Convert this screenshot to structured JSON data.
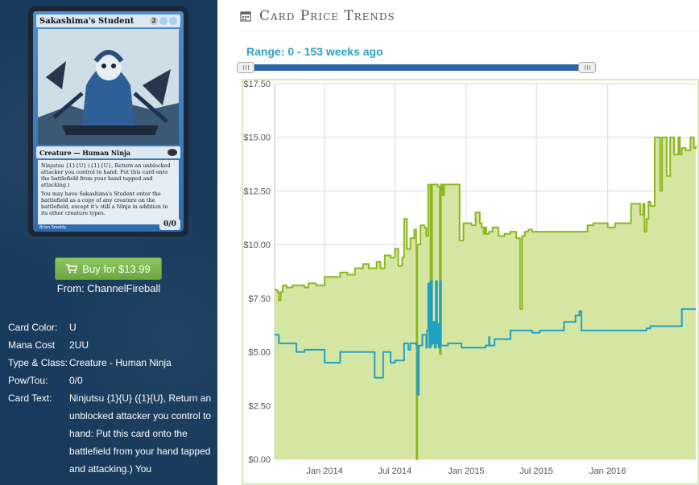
{
  "card": {
    "name": "Sakashima's Student",
    "mana_symbols": [
      "2",
      "U",
      "U"
    ],
    "type_line": "Creature — Human Ninja",
    "rules_text_1": "Ninjutsu {1}{U} ({1}{U}, Return an unblocked attacker you control to hand: Put this card onto the battlefield from your hand tapped and attacking.)",
    "rules_text_2": "You may have Sakashima's Student enter the battlefield as a copy of any creature on the battlefield, except it's still a Ninja in addition to its other creature types.",
    "artist": "Brian Snoddy",
    "pt": "0/0"
  },
  "buy": {
    "label": "Buy for $13.99",
    "from": "From: ChannelFireball"
  },
  "details": [
    {
      "label": "Card Color:",
      "value": "U"
    },
    {
      "label": "Mana Cost",
      "value": "2UU"
    },
    {
      "label": "Type & Class:",
      "value": "Creature - Human Ninja"
    },
    {
      "label": "Pow/Tou:",
      "value": "0/0"
    },
    {
      "label": "Card Text:",
      "value": "Ninjutsu {1}{U} ({1}{U}, Return an unblocked attacker you control to hand: Put this card onto the battlefield from your hand tapped and attacking.) You"
    }
  ],
  "chart_header": {
    "title": "Card Price Trends",
    "icon": "calendar-icon"
  },
  "range": {
    "label": "Range: 0 - 153 weeks ago"
  },
  "colors": {
    "green_line": "#8ab81e",
    "green_fill": "#d4e6a2",
    "blue_line": "#22a0c4",
    "slider": "#2a66a6",
    "sidebar": "#173a5c"
  },
  "chart_data": {
    "type": "line",
    "title": "",
    "xlabel": "",
    "ylabel": "",
    "ylim": [
      0,
      17.5
    ],
    "xlim": [
      "2013-08-25",
      "2016-08-15"
    ],
    "yticks": [
      "$0.00",
      "$2.50",
      "$5.00",
      "$7.50",
      "$10.00",
      "$12.50",
      "$15.00",
      "$17.50"
    ],
    "xticks": [
      {
        "label": "Jan 2014",
        "date": "2014-01-01"
      },
      {
        "label": "Jul 2014",
        "date": "2014-07-01"
      },
      {
        "label": "Jan 2015",
        "date": "2015-01-01"
      },
      {
        "label": "Jul 2015",
        "date": "2015-07-01"
      },
      {
        "label": "Jan 2016",
        "date": "2016-01-01"
      }
    ],
    "grid": true,
    "series": [
      {
        "fill": true,
        "x": [
          "2013-08-25",
          "2013-09-01",
          "2013-09-05",
          "2013-09-10",
          "2013-09-15",
          "2013-09-25",
          "2013-10-10",
          "2013-10-25",
          "2013-11-10",
          "2013-11-20",
          "2013-12-10",
          "2014-01-01",
          "2014-01-20",
          "2014-02-10",
          "2014-03-01",
          "2014-03-20",
          "2014-04-10",
          "2014-04-25",
          "2014-05-15",
          "2014-05-25",
          "2014-06-05",
          "2014-06-20",
          "2014-07-01",
          "2014-07-10",
          "2014-07-20",
          "2014-07-25",
          "2014-08-01",
          "2014-08-10",
          "2014-08-20",
          "2014-08-25",
          "2014-08-26",
          "2014-08-28",
          "2014-09-05",
          "2014-09-15",
          "2014-09-20",
          "2014-09-25",
          "2014-10-01",
          "2014-10-05",
          "2014-10-15",
          "2014-10-20",
          "2014-10-25",
          "2014-10-28",
          "2014-11-01",
          "2014-11-05",
          "2014-11-15",
          "2014-11-25",
          "2014-12-05",
          "2014-12-15",
          "2014-12-25",
          "2015-01-05",
          "2015-01-15",
          "2015-01-25",
          "2015-02-05",
          "2015-02-10",
          "2015-02-15",
          "2015-02-18",
          "2015-02-22",
          "2015-03-01",
          "2015-03-10",
          "2015-03-25",
          "2015-04-10",
          "2015-04-25",
          "2015-05-10",
          "2015-05-20",
          "2015-05-25",
          "2015-06-01",
          "2015-06-10",
          "2015-06-20",
          "2015-07-05",
          "2015-07-20",
          "2015-08-10",
          "2015-09-01",
          "2015-09-20",
          "2015-10-10",
          "2015-10-25",
          "2015-11-10",
          "2015-11-25",
          "2015-12-10",
          "2016-01-01",
          "2016-01-20",
          "2016-02-10",
          "2016-03-01",
          "2016-03-10",
          "2016-03-15",
          "2016-03-20",
          "2016-03-25",
          "2016-04-01",
          "2016-04-05",
          "2016-04-10",
          "2016-04-15",
          "2016-04-20",
          "2016-05-01",
          "2016-05-15",
          "2016-05-20",
          "2016-06-01",
          "2016-06-10",
          "2016-06-20",
          "2016-07-01",
          "2016-07-05",
          "2016-07-10",
          "2016-07-20",
          "2016-08-01",
          "2016-08-10",
          "2016-08-15"
        ],
        "y": [
          7.9,
          7.8,
          7.4,
          7.8,
          8.1,
          8.0,
          8.1,
          8.1,
          8.0,
          8.2,
          8.1,
          8.5,
          8.5,
          8.7,
          8.6,
          8.9,
          9.1,
          8.9,
          9.2,
          8.9,
          9.5,
          9.4,
          9.8,
          9.0,
          9.4,
          11.2,
          9.8,
          10.3,
          10.7,
          10.0,
          0.0,
          10.0,
          10.9,
          10.8,
          10.4,
          12.8,
          5.3,
          12.8,
          12.8,
          12.7,
          4.9,
          12.8,
          12.3,
          12.8,
          12.8,
          12.8,
          12.8,
          10.2,
          11.0,
          11.0,
          10.9,
          11.5,
          11.0,
          10.8,
          10.5,
          10.8,
          10.5,
          10.6,
          10.8,
          10.4,
          10.5,
          10.6,
          10.3,
          7.0,
          10.4,
          10.6,
          10.7,
          10.6,
          10.6,
          10.6,
          10.6,
          10.6,
          10.6,
          10.6,
          10.6,
          10.9,
          11.0,
          11.0,
          10.8,
          11.0,
          11.0,
          11.9,
          11.9,
          11.9,
          11.9,
          11.4,
          11.9,
          10.6,
          11.2,
          12.0,
          11.8,
          15.0,
          12.5,
          15.0,
          13.2,
          15.0,
          14.2,
          15.0,
          14.2,
          14.5,
          14.4,
          15.0,
          14.5,
          14.6
        ]
      },
      {
        "fill": false,
        "x": [
          "2013-08-25",
          "2013-09-05",
          "2013-09-10",
          "2013-10-01",
          "2013-10-20",
          "2013-11-10",
          "2013-12-10",
          "2014-01-01",
          "2014-02-10",
          "2014-03-01",
          "2014-03-20",
          "2014-04-10",
          "2014-05-10",
          "2014-06-01",
          "2014-06-20",
          "2014-07-01",
          "2014-07-25",
          "2014-08-01",
          "2014-08-05",
          "2014-08-10",
          "2014-08-25",
          "2014-08-28",
          "2014-09-01",
          "2014-09-08",
          "2014-09-10",
          "2014-09-20",
          "2014-09-22",
          "2014-09-25",
          "2014-09-28",
          "2014-10-01",
          "2014-10-05",
          "2014-10-08",
          "2014-10-12",
          "2014-10-15",
          "2014-10-18",
          "2014-10-20",
          "2014-10-22",
          "2014-10-25",
          "2014-10-28",
          "2014-11-15",
          "2014-12-01",
          "2014-12-10",
          "2014-12-20",
          "2015-01-01",
          "2015-01-25",
          "2015-02-20",
          "2015-03-01",
          "2015-03-02",
          "2015-03-15",
          "2015-04-10",
          "2015-04-25",
          "2015-05-20",
          "2015-06-10",
          "2015-06-20",
          "2015-07-10",
          "2015-08-10",
          "2015-08-25",
          "2015-09-10",
          "2015-10-10",
          "2015-10-20",
          "2015-10-25",
          "2016-01-01",
          "2016-02-10",
          "2016-03-01",
          "2016-03-20",
          "2016-04-10",
          "2016-04-20",
          "2016-05-10",
          "2016-06-10",
          "2016-07-10",
          "2016-08-15"
        ],
        "y": [
          5.8,
          5.4,
          5.4,
          5.4,
          5.0,
          5.1,
          5.1,
          4.5,
          5.0,
          5.0,
          5.0,
          5.0,
          3.8,
          5.0,
          4.5,
          4.6,
          5.4,
          5.4,
          5.1,
          5.4,
          5.3,
          3.0,
          5.3,
          5.3,
          5.8,
          5.2,
          6.0,
          8.2,
          5.2,
          8.3,
          5.4,
          6.4,
          5.2,
          8.3,
          5.4,
          6.3,
          5.2,
          8.3,
          5.3,
          5.4,
          5.4,
          5.4,
          5.2,
          5.2,
          5.2,
          5.3,
          5.7,
          5.3,
          5.6,
          5.6,
          6.0,
          6.0,
          6.0,
          5.9,
          6.0,
          6.0,
          6.0,
          6.4,
          6.7,
          6.9,
          6.0,
          6.0,
          6.0,
          6.0,
          6.0,
          6.1,
          6.2,
          6.2,
          6.2,
          7.0,
          7.0
        ]
      }
    ]
  }
}
